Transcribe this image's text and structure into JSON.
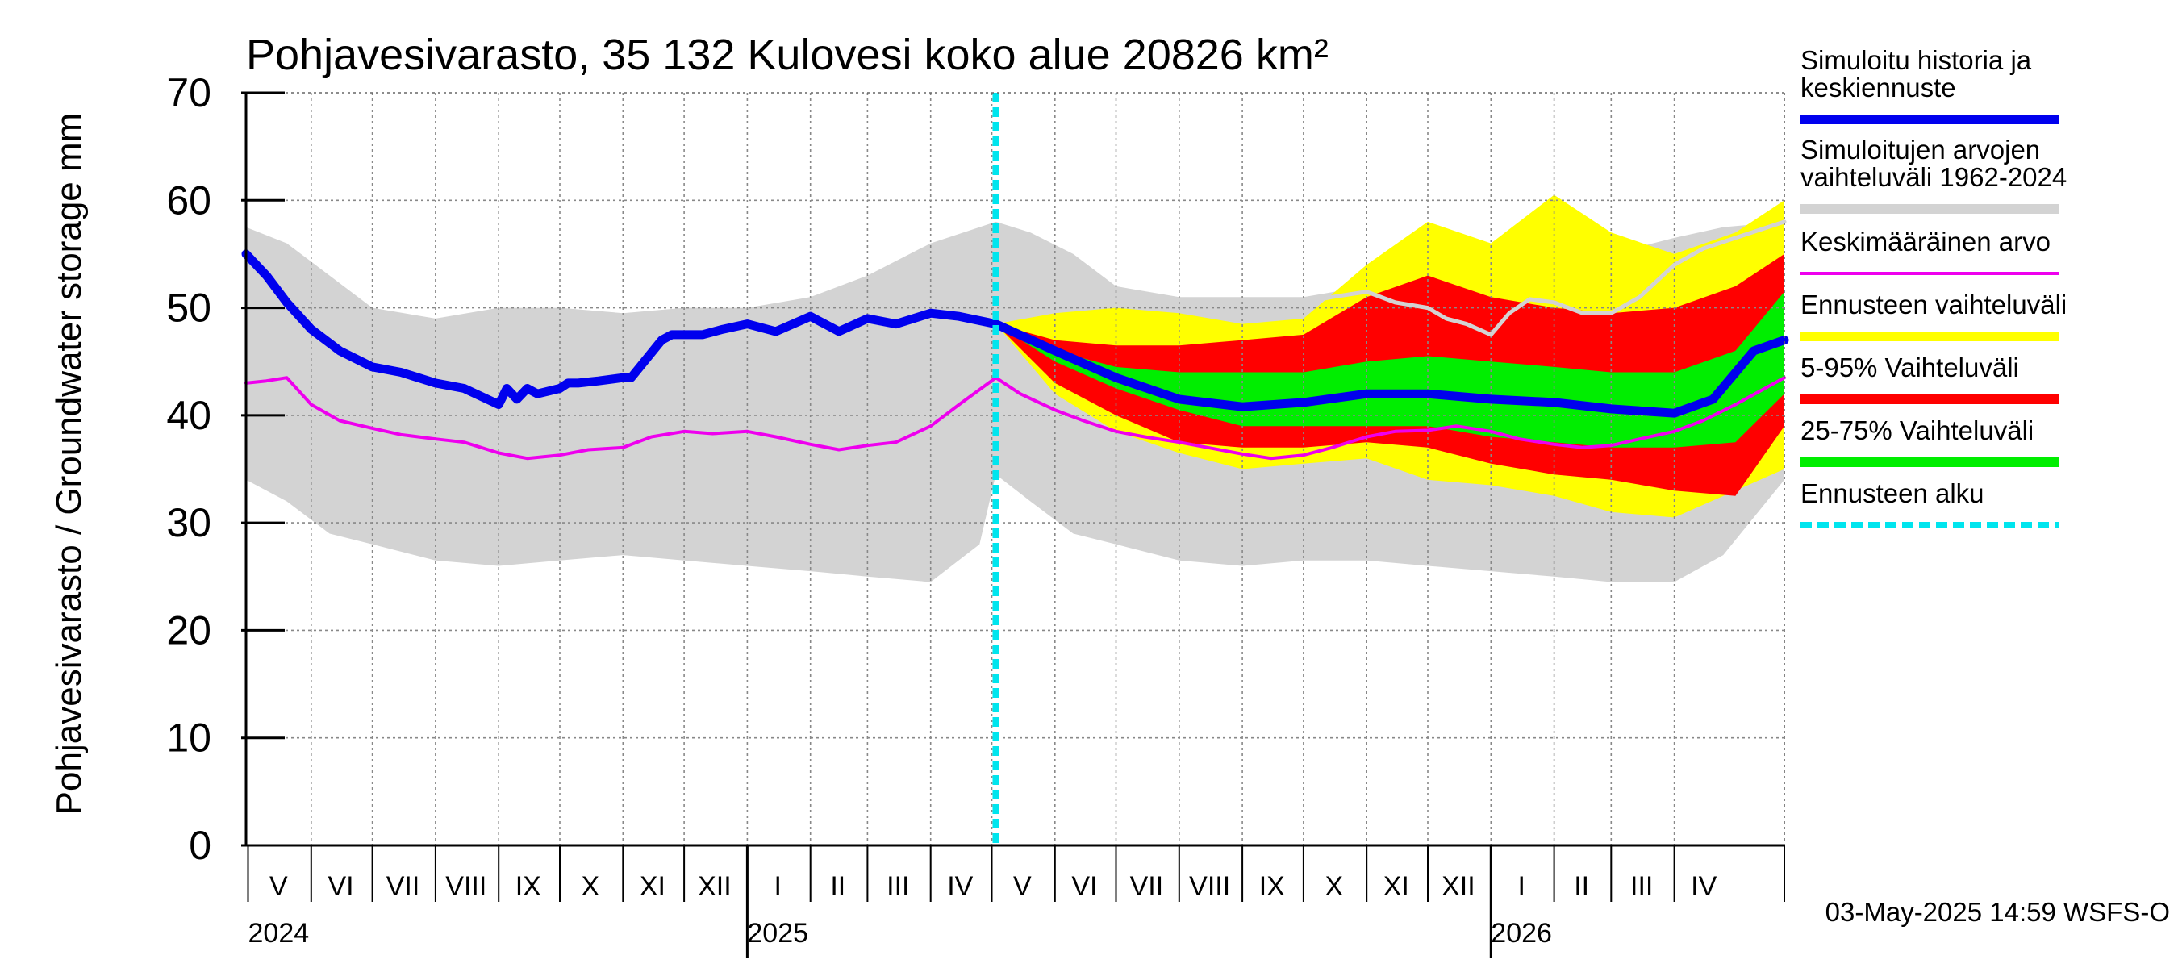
{
  "chart_data": {
    "type": "area",
    "title": "Pohjavesivarasto, 35 132 Kulovesi koko alue 20826 km²",
    "ylabel": "Pohjavesivarasto / Groundwater storage   mm",
    "ylim": [
      0,
      70
    ],
    "yticks": [
      0,
      10,
      20,
      30,
      40,
      50,
      60,
      70
    ],
    "xlim": [
      "2024-04-30",
      "2026-05-25"
    ],
    "forecast_start": "2025-05-03",
    "grid": true,
    "legend_position": "right",
    "months": [
      {
        "label": "V",
        "start": "2024-05-01",
        "end": "2024-05-31"
      },
      {
        "label": "VI",
        "start": "2024-06-01",
        "end": "2024-06-30"
      },
      {
        "label": "VII",
        "start": "2024-07-01",
        "end": "2024-07-31"
      },
      {
        "label": "VIII",
        "start": "2024-08-01",
        "end": "2024-08-31"
      },
      {
        "label": "IX",
        "start": "2024-09-01",
        "end": "2024-09-30"
      },
      {
        "label": "X",
        "start": "2024-10-01",
        "end": "2024-10-31"
      },
      {
        "label": "XI",
        "start": "2024-11-01",
        "end": "2024-11-30"
      },
      {
        "label": "XII",
        "start": "2024-12-01",
        "end": "2024-12-31"
      },
      {
        "label": "I",
        "start": "2025-01-01",
        "end": "2025-01-31"
      },
      {
        "label": "II",
        "start": "2025-02-01",
        "end": "2025-02-28"
      },
      {
        "label": "III",
        "start": "2025-03-01",
        "end": "2025-03-31"
      },
      {
        "label": "IV",
        "start": "2025-04-01",
        "end": "2025-04-30"
      },
      {
        "label": "V",
        "start": "2025-05-01",
        "end": "2025-05-31"
      },
      {
        "label": "VI",
        "start": "2025-06-01",
        "end": "2025-06-30"
      },
      {
        "label": "VII",
        "start": "2025-07-01",
        "end": "2025-07-31"
      },
      {
        "label": "VIII",
        "start": "2025-08-01",
        "end": "2025-08-31"
      },
      {
        "label": "IX",
        "start": "2025-09-01",
        "end": "2025-09-30"
      },
      {
        "label": "X",
        "start": "2025-10-01",
        "end": "2025-10-31"
      },
      {
        "label": "XI",
        "start": "2025-11-01",
        "end": "2025-11-30"
      },
      {
        "label": "XII",
        "start": "2025-12-01",
        "end": "2025-12-31"
      },
      {
        "label": "I",
        "start": "2026-01-01",
        "end": "2026-01-31"
      },
      {
        "label": "II",
        "start": "2026-02-01",
        "end": "2026-02-28"
      },
      {
        "label": "III",
        "start": "2026-03-01",
        "end": "2026-03-31"
      },
      {
        "label": "IV",
        "start": "2026-04-01",
        "end": "2026-04-30"
      }
    ],
    "years": [
      {
        "label": "2024",
        "date": "2024-05-01"
      },
      {
        "label": "2025",
        "date": "2025-01-01"
      },
      {
        "label": "2026",
        "date": "2026-01-01"
      }
    ],
    "year_boundaries": [
      "2025-01-01",
      "2026-01-01"
    ],
    "bands": [
      {
        "id": "historical-range",
        "name": "Simuloitujen arvojen vaihteluväli 1962-2024",
        "color": "#d3d3d3",
        "x": [
          "2024-04-30",
          "2024-05-20",
          "2024-06-10",
          "2024-07-01",
          "2024-08-01",
          "2024-09-01",
          "2024-10-01",
          "2024-11-01",
          "2024-12-01",
          "2025-01-01",
          "2025-02-01",
          "2025-03-01",
          "2025-04-01",
          "2025-04-25",
          "2025-05-03",
          "2025-05-20",
          "2025-06-10",
          "2025-07-01",
          "2025-08-01",
          "2025-09-01",
          "2025-10-01",
          "2025-11-01",
          "2025-12-01",
          "2026-01-01",
          "2026-02-01",
          "2026-03-01",
          "2026-04-01",
          "2026-04-25",
          "2026-05-25"
        ],
        "upper": [
          57.5,
          56,
          53,
          50,
          49,
          50,
          50,
          49.5,
          50,
          50,
          51,
          53,
          56,
          57.5,
          58,
          57,
          55,
          52,
          51,
          51,
          51,
          52,
          52.5,
          53,
          54,
          55,
          56.5,
          57.5,
          58
        ],
        "lower": [
          34,
          32,
          29,
          28,
          26.5,
          26,
          26.5,
          27,
          26.5,
          26,
          25.5,
          25,
          24.5,
          28,
          34.5,
          32,
          29,
          28,
          26.5,
          26,
          26.5,
          26.5,
          26,
          25.5,
          25,
          24.5,
          24.5,
          27,
          34
        ]
      },
      {
        "id": "forecast-range",
        "name": "Ennusteen vaihteluväli",
        "color": "#ffff00",
        "x": [
          "2025-05-03",
          "2025-06-01",
          "2025-07-01",
          "2025-08-01",
          "2025-09-01",
          "2025-10-01",
          "2025-11-01",
          "2025-12-01",
          "2026-01-01",
          "2026-02-01",
          "2026-03-01",
          "2026-04-01",
          "2026-05-01",
          "2026-05-25"
        ],
        "upper": [
          48.5,
          49.5,
          50,
          49.5,
          48.5,
          49,
          54,
          58,
          56,
          60.5,
          57,
          55,
          57,
          60
        ],
        "lower": [
          48.5,
          42,
          38.5,
          36.5,
          35,
          35.5,
          36,
          34,
          33.5,
          32.5,
          31,
          30.5,
          33,
          35
        ]
      },
      {
        "id": "range-5-95",
        "name": "5-95% Vaihteluväli",
        "color": "#ff0000",
        "x": [
          "2025-05-03",
          "2025-06-01",
          "2025-07-01",
          "2025-08-01",
          "2025-09-01",
          "2025-10-01",
          "2025-11-01",
          "2025-12-01",
          "2026-01-01",
          "2026-02-01",
          "2026-03-01",
          "2026-04-01",
          "2026-05-01",
          "2026-05-25"
        ],
        "upper": [
          48.5,
          47,
          46.5,
          46.5,
          47,
          47.5,
          51,
          53,
          51,
          50,
          49.5,
          50,
          52,
          55
        ],
        "lower": [
          48.5,
          43,
          40,
          37.5,
          37,
          37,
          37.5,
          37,
          35.5,
          34.5,
          34,
          33,
          32.5,
          39
        ]
      },
      {
        "id": "range-25-75",
        "name": "25-75% Vaihteluväli",
        "color": "#00ee00",
        "x": [
          "2025-05-03",
          "2025-06-01",
          "2025-07-01",
          "2025-08-01",
          "2025-09-01",
          "2025-10-01",
          "2025-11-01",
          "2025-12-01",
          "2026-01-01",
          "2026-02-01",
          "2026-03-01",
          "2026-04-01",
          "2026-05-01",
          "2026-05-25"
        ],
        "upper": [
          48.5,
          46,
          44.5,
          44,
          44,
          44,
          45,
          45.5,
          45,
          44.5,
          44,
          44,
          46,
          51.5
        ],
        "lower": [
          48.5,
          45,
          42.5,
          40.5,
          39,
          39,
          39,
          39,
          38,
          37.5,
          37,
          37,
          37.5,
          42
        ]
      }
    ],
    "series": [
      {
        "id": "simulated",
        "name": "Simuloitu historia ja keskiennuste",
        "color": "#0000ee",
        "width": 11,
        "x": [
          "2024-04-30",
          "2024-05-10",
          "2024-05-20",
          "2024-06-01",
          "2024-06-15",
          "2024-07-01",
          "2024-07-15",
          "2024-08-01",
          "2024-08-15",
          "2024-09-01",
          "2024-09-05",
          "2024-09-10",
          "2024-09-15",
          "2024-09-20",
          "2024-10-01",
          "2024-10-05",
          "2024-10-10",
          "2024-10-20",
          "2024-11-01",
          "2024-11-05",
          "2024-11-20",
          "2024-11-25",
          "2024-12-01",
          "2024-12-10",
          "2024-12-20",
          "2025-01-01",
          "2025-01-15",
          "2025-02-01",
          "2025-02-15",
          "2025-03-01",
          "2025-03-15",
          "2025-04-01",
          "2025-04-15",
          "2025-05-03",
          "2025-06-01",
          "2025-07-01",
          "2025-08-01",
          "2025-09-01",
          "2025-10-01",
          "2025-11-01",
          "2025-12-01",
          "2026-01-01",
          "2026-02-01",
          "2026-03-01",
          "2026-04-01",
          "2026-04-20",
          "2026-05-10",
          "2026-05-25"
        ],
        "y": [
          55,
          53,
          50.5,
          48,
          46,
          44.5,
          44,
          43,
          42.5,
          41,
          42.5,
          41.5,
          42.5,
          42,
          42.5,
          43,
          43,
          43.2,
          43.5,
          43.5,
          47,
          47.5,
          47.5,
          47.5,
          48,
          48.5,
          47.8,
          49.2,
          47.8,
          49,
          48.5,
          49.5,
          49.2,
          48.5,
          46,
          43.5,
          41.5,
          40.8,
          41.2,
          42,
          42,
          41.5,
          41.2,
          40.6,
          40.2,
          41.5,
          46,
          47
        ]
      },
      {
        "id": "mean",
        "name": "Keskimääräinen arvo",
        "color": "#ee00ee",
        "width": 4,
        "x": [
          "2024-04-30",
          "2024-05-10",
          "2024-05-20",
          "2024-06-01",
          "2024-06-15",
          "2024-07-01",
          "2024-07-15",
          "2024-08-01",
          "2024-08-15",
          "2024-09-01",
          "2024-09-15",
          "2024-10-01",
          "2024-10-15",
          "2024-11-01",
          "2024-11-15",
          "2024-12-01",
          "2024-12-15",
          "2025-01-01",
          "2025-01-15",
          "2025-02-01",
          "2025-02-15",
          "2025-03-01",
          "2025-03-15",
          "2025-04-01",
          "2025-04-15",
          "2025-05-03",
          "2025-05-15",
          "2025-06-01",
          "2025-06-15",
          "2025-07-01",
          "2025-07-15",
          "2025-08-01",
          "2025-08-15",
          "2025-09-01",
          "2025-09-15",
          "2025-10-01",
          "2025-10-15",
          "2025-11-01",
          "2025-11-15",
          "2025-12-01",
          "2025-12-15",
          "2026-01-01",
          "2026-01-15",
          "2026-02-01",
          "2026-02-15",
          "2026-03-01",
          "2026-03-15",
          "2026-04-01",
          "2026-04-15",
          "2026-05-01",
          "2026-05-25"
        ],
        "y": [
          43,
          43.2,
          43.5,
          41,
          39.5,
          38.8,
          38.2,
          37.8,
          37.5,
          36.5,
          36,
          36.3,
          36.8,
          37,
          38,
          38.5,
          38.3,
          38.5,
          38,
          37.3,
          36.8,
          37.2,
          37.5,
          39,
          41,
          43.5,
          42,
          40.5,
          39.5,
          38.5,
          38,
          37.5,
          37,
          36.4,
          36,
          36.3,
          37,
          38,
          38.5,
          38.6,
          39,
          38.5,
          37.8,
          37.3,
          37,
          37.2,
          37.8,
          38.5,
          39.5,
          41,
          43.5
        ]
      },
      {
        "id": "median-forecast-light",
        "name": "",
        "color": "#d3d3d3",
        "width": 5,
        "x": [
          "2025-10-01",
          "2025-10-15",
          "2025-11-01",
          "2025-11-15",
          "2025-12-01",
          "2025-12-10",
          "2025-12-20",
          "2026-01-01",
          "2026-01-10",
          "2026-01-20",
          "2026-02-01",
          "2026-02-15",
          "2026-03-01",
          "2026-03-15",
          "2026-04-01",
          "2026-04-15",
          "2026-05-01",
          "2026-05-25"
        ],
        "y": [
          50.5,
          51,
          51.5,
          50.5,
          50,
          49,
          48.5,
          47.5,
          49.5,
          50.8,
          50.5,
          49.5,
          49.5,
          51,
          54,
          55.5,
          56.5,
          58
        ]
      }
    ],
    "legend": [
      {
        "id": "simulated",
        "label": "Simuloitu historia ja keskiennuste",
        "color": "#0000ee",
        "style": "thick"
      },
      {
        "id": "historical-range",
        "label": "Simuloitujen arvojen vaihteluväli 1962-2024",
        "color": "#d3d3d3",
        "style": "thick"
      },
      {
        "id": "mean",
        "label": "Keskimääräinen arvo",
        "color": "#ee00ee",
        "style": "thin"
      },
      {
        "id": "forecast-range",
        "label": "Ennusteen vaihteluväli",
        "color": "#ffff00",
        "style": "thick"
      },
      {
        "id": "range-5-95",
        "label": "5-95% Vaihteluväli",
        "color": "#ff0000",
        "style": "thick"
      },
      {
        "id": "range-25-75",
        "label": "25-75% Vaihteluväli",
        "color": "#00ee00",
        "style": "thick"
      },
      {
        "id": "forecast-start",
        "label": "Ennusteen alku",
        "color": "#00e5ee",
        "style": "dashed"
      }
    ],
    "footer": "03-May-2025 14:59 WSFS-O"
  }
}
